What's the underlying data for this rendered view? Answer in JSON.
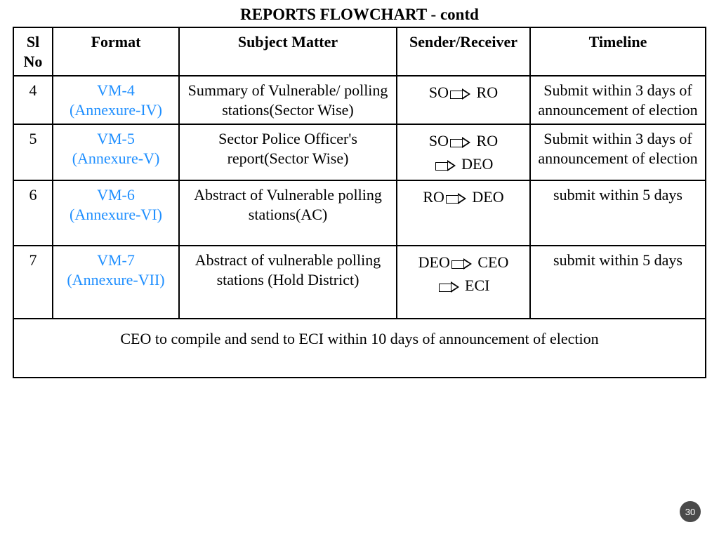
{
  "title": "REPORTS FLOWCHART - contd",
  "columns": {
    "sl": "Sl No",
    "format": "Format",
    "subject": "Subject Matter",
    "sender": "Sender/Receiver",
    "timeline": "Timeline"
  },
  "rows": [
    {
      "sl": "4",
      "format_line1": "VM-4",
      "format_line2": "(Annexure-IV)",
      "subject": "Summary of Vulnerable/ polling stations(Sector Wise)",
      "sender_parts": [
        [
          "SO",
          "RO"
        ]
      ],
      "timeline": "Submit within 3 days of announcement of election"
    },
    {
      "sl": "5",
      "format_line1": "VM-5",
      "format_line2": "(Annexure-V)",
      "subject": "Sector Police Officer's report(Sector Wise)",
      "sender_parts": [
        [
          "SO",
          "RO"
        ],
        [
          "",
          "DEO"
        ]
      ],
      "timeline": "Submit within 3 days of announcement of election"
    },
    {
      "sl": "6",
      "format_line1": "VM-6",
      "format_line2": "(Annexure-VI)",
      "subject": "Abstract of Vulnerable polling stations(AC)",
      "sender_parts": [
        [
          "RO",
          "DEO"
        ]
      ],
      "timeline": "submit within 5 days"
    },
    {
      "sl": "7",
      "format_line1": "VM-7",
      "format_line2": "(Annexure-VII)",
      "subject": "Abstract of vulnerable polling stations (Hold District)",
      "sender_parts": [
        [
          "DEO",
          "CEO"
        ],
        [
          "",
          "ECI"
        ]
      ],
      "timeline": "submit within 5 days"
    }
  ],
  "footer": "CEO to compile and send to ECI within 10 days of announcement of election",
  "page_number": "30",
  "colors": {
    "link": "#1f8fff",
    "border": "#000000",
    "text": "#000000",
    "badge_bg": "#4a4a4a",
    "badge_text": "#ffffff"
  }
}
